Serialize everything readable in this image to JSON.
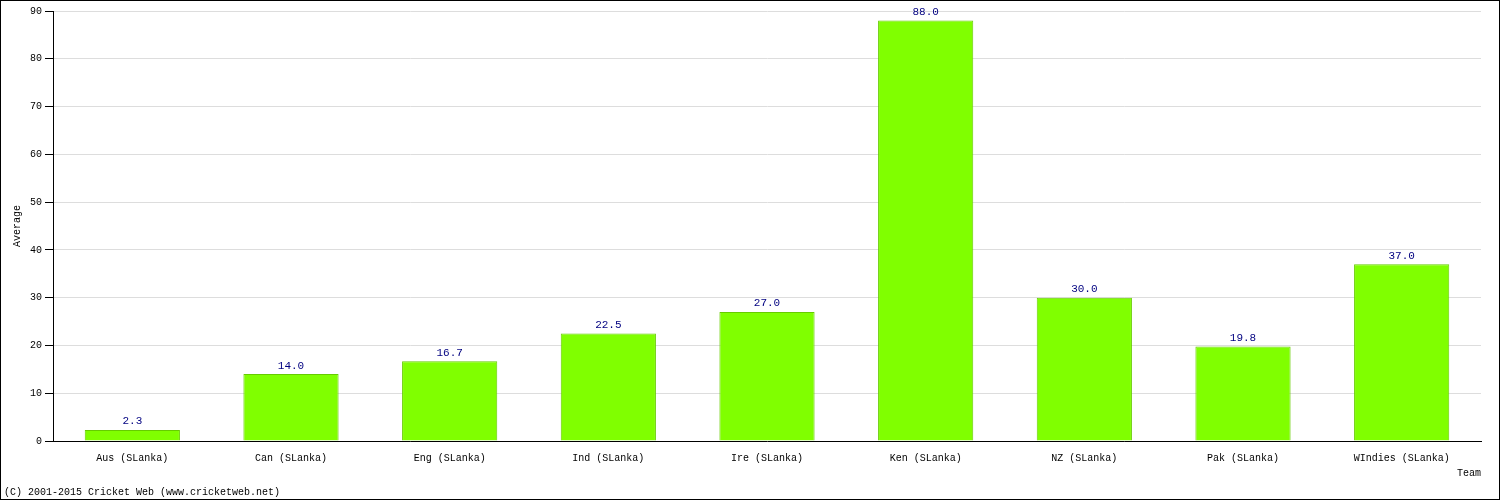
{
  "chart_data": {
    "type": "bar",
    "categories": [
      "Aus (SLanka)",
      "Can (SLanka)",
      "Eng (SLanka)",
      "Ind (SLanka)",
      "Ire (SLanka)",
      "Ken (SLanka)",
      "NZ (SLanka)",
      "Pak (SLanka)",
      "WIndies (SLanka)"
    ],
    "values": [
      2.3,
      14,
      16.7,
      22.5,
      27,
      88,
      30,
      19.8,
      37
    ],
    "value_labels": [
      "2.3",
      "14.0",
      "16.7",
      "22.5",
      "27.0",
      "88.0",
      "30.0",
      "19.8",
      "37.0"
    ],
    "color": "#80ff00",
    "x_label": "Team",
    "y_label": "Average",
    "annotations": [
      "(C) 2001-2015 Cricket Web (www.cricketweb.net)"
    ],
    "ylim": [
      0,
      90
    ],
    "yticks": [
      0,
      10,
      20,
      30,
      40,
      50,
      60,
      70,
      80,
      90
    ],
    "grid": true,
    "data_labels": true
  }
}
